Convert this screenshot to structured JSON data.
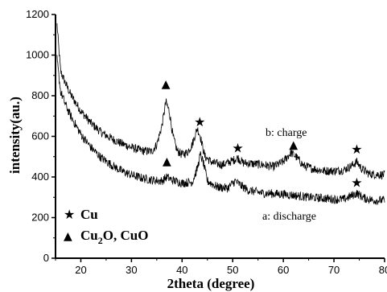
{
  "chart_data": {
    "type": "line",
    "title": "",
    "xlabel": "2theta (degree)",
    "ylabel": "intensity(au.)",
    "xlim": [
      15,
      80
    ],
    "ylim": [
      0,
      1200
    ],
    "x_ticks": [
      "20",
      "30",
      "40",
      "50",
      "60",
      "70",
      "80"
    ],
    "y_ticks": [
      "0",
      "200",
      "400",
      "600",
      "800",
      "1000",
      "1200"
    ],
    "grid": false,
    "series": [
      {
        "name": "b: charge",
        "points": [
          [
            15.3,
            1150
          ],
          [
            16,
            920
          ],
          [
            17,
            860
          ],
          [
            18,
            805
          ],
          [
            19,
            765
          ],
          [
            20,
            725
          ],
          [
            22,
            665
          ],
          [
            24,
            620
          ],
          [
            26,
            590
          ],
          [
            28,
            565
          ],
          [
            30,
            545
          ],
          [
            32,
            530
          ],
          [
            34,
            525
          ],
          [
            35,
            560
          ],
          [
            36,
            650
          ],
          [
            36.8,
            770
          ],
          [
            37.5,
            720
          ],
          [
            38.2,
            600
          ],
          [
            39,
            530
          ],
          [
            40,
            510
          ],
          [
            41,
            520
          ],
          [
            42,
            560
          ],
          [
            43,
            640
          ],
          [
            43.6,
            600
          ],
          [
            44.5,
            500
          ],
          [
            46,
            470
          ],
          [
            48,
            460
          ],
          [
            50,
            480
          ],
          [
            51,
            495
          ],
          [
            52,
            470
          ],
          [
            54,
            465
          ],
          [
            56,
            460
          ],
          [
            58,
            450
          ],
          [
            60,
            475
          ],
          [
            61.5,
            520
          ],
          [
            62.5,
            500
          ],
          [
            64,
            455
          ],
          [
            66,
            440
          ],
          [
            68,
            430
          ],
          [
            70,
            430
          ],
          [
            72,
            435
          ],
          [
            73.5,
            455
          ],
          [
            74.5,
            475
          ],
          [
            75.5,
            440
          ],
          [
            77,
            415
          ],
          [
            80,
            410
          ]
        ]
      },
      {
        "name": "a: discharge",
        "points": [
          [
            15.3,
            980
          ],
          [
            16,
            820
          ],
          [
            17,
            755
          ],
          [
            18,
            700
          ],
          [
            19,
            655
          ],
          [
            20,
            610
          ],
          [
            22,
            545
          ],
          [
            24,
            495
          ],
          [
            26,
            460
          ],
          [
            28,
            430
          ],
          [
            30,
            410
          ],
          [
            32,
            395
          ],
          [
            34,
            385
          ],
          [
            36,
            380
          ],
          [
            37,
            400
          ],
          [
            38,
            385
          ],
          [
            40,
            370
          ],
          [
            42,
            375
          ],
          [
            43,
            440
          ],
          [
            43.6,
            510
          ],
          [
            44.2,
            470
          ],
          [
            45,
            380
          ],
          [
            47,
            350
          ],
          [
            49,
            345
          ],
          [
            50.5,
            380
          ],
          [
            51.5,
            360
          ],
          [
            53,
            335
          ],
          [
            56,
            320
          ],
          [
            60,
            315
          ],
          [
            62,
            310
          ],
          [
            65,
            300
          ],
          [
            68,
            295
          ],
          [
            70,
            290
          ],
          [
            72,
            290
          ],
          [
            74.5,
            320
          ],
          [
            76,
            295
          ],
          [
            78,
            285
          ],
          [
            80,
            285
          ]
        ]
      }
    ],
    "annotations": {
      "charge_label": "b: charge",
      "discharge_label": "a: discharge",
      "charge_markers": [
        {
          "x": 36.8,
          "y": 860,
          "symbol": "▲"
        },
        {
          "x": 43.5,
          "y": 670,
          "symbol": "★"
        },
        {
          "x": 51,
          "y": 540,
          "symbol": "★"
        },
        {
          "x": 62,
          "y": 560,
          "symbol": "▲"
        },
        {
          "x": 74.5,
          "y": 535,
          "symbol": "★"
        }
      ],
      "discharge_markers": [
        {
          "x": 37,
          "y": 480,
          "symbol": "▲"
        },
        {
          "x": 74.5,
          "y": 370,
          "symbol": "★"
        }
      ]
    },
    "legend": {
      "placement": "bottom-left",
      "entries": [
        {
          "symbol": "★",
          "label": "Cu"
        },
        {
          "symbol": "▲",
          "label_main": "Cu",
          "label_sub": "2",
          "label_rest": "O, CuO"
        }
      ]
    }
  }
}
